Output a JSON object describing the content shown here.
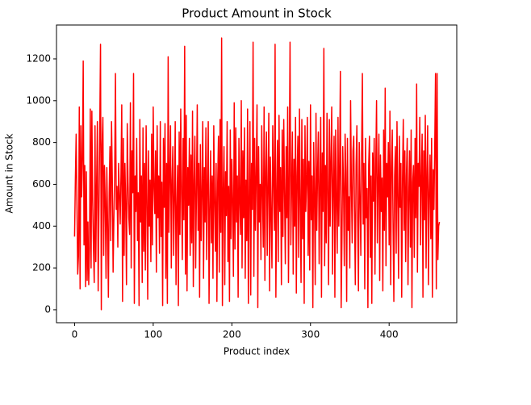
{
  "chart_data": {
    "type": "line",
    "title": "Product Amount in Stock",
    "x_label": "Product index",
    "y_label": "Amount in Stock",
    "xlim": [
      -23,
      486
    ],
    "ylim": [
      -62,
      1362
    ],
    "xticks": [
      0,
      100,
      200,
      300,
      400
    ],
    "yticks": [
      0,
      200,
      400,
      600,
      800,
      1000,
      1200
    ],
    "grid": false,
    "x": [
      0,
      1,
      2,
      3,
      4,
      5,
      6,
      7,
      8,
      9,
      10,
      11,
      12,
      13,
      14,
      15,
      16,
      17,
      18,
      19,
      20,
      21,
      22,
      23,
      24,
      25,
      26,
      27,
      28,
      29,
      30,
      31,
      32,
      33,
      34,
      35,
      36,
      37,
      38,
      39,
      40,
      41,
      42,
      43,
      44,
      45,
      46,
      47,
      48,
      49,
      50,
      51,
      52,
      53,
      54,
      55,
      56,
      57,
      58,
      59,
      60,
      61,
      62,
      63,
      64,
      65,
      66,
      67,
      68,
      69,
      70,
      71,
      72,
      73,
      74,
      75,
      76,
      77,
      78,
      79,
      80,
      81,
      82,
      83,
      84,
      85,
      86,
      87,
      88,
      89,
      90,
      91,
      92,
      93,
      94,
      95,
      96,
      97,
      98,
      99,
      100,
      101,
      102,
      103,
      104,
      105,
      106,
      107,
      108,
      109,
      110,
      111,
      112,
      113,
      114,
      115,
      116,
      117,
      118,
      119,
      120,
      121,
      122,
      123,
      124,
      125,
      126,
      127,
      128,
      129,
      130,
      131,
      132,
      133,
      134,
      135,
      136,
      137,
      138,
      139,
      140,
      141,
      142,
      143,
      144,
      145,
      146,
      147,
      148,
      149,
      150,
      151,
      152,
      153,
      154,
      155,
      156,
      157,
      158,
      159,
      160,
      161,
      162,
      163,
      164,
      165,
      166,
      167,
      168,
      169,
      170,
      171,
      172,
      173,
      174,
      175,
      176,
      177,
      178,
      179,
      180,
      181,
      182,
      183,
      184,
      185,
      186,
      187,
      188,
      189,
      190,
      191,
      192,
      193,
      194,
      195,
      196,
      197,
      198,
      199,
      200,
      201,
      202,
      203,
      204,
      205,
      206,
      207,
      208,
      209,
      210,
      211,
      212,
      213,
      214,
      215,
      216,
      217,
      218,
      219,
      220,
      221,
      222,
      223,
      224,
      225,
      226,
      227,
      228,
      229,
      230,
      231,
      232,
      233,
      234,
      235,
      236,
      237,
      238,
      239,
      240,
      241,
      242,
      243,
      244,
      245,
      246,
      247,
      248,
      249,
      250,
      251,
      252,
      253,
      254,
      255,
      256,
      257,
      258,
      259,
      260,
      261,
      262,
      263,
      264,
      265,
      266,
      267,
      268,
      269,
      270,
      271,
      272,
      273,
      274,
      275,
      276,
      277,
      278,
      279,
      280,
      281,
      282,
      283,
      284,
      285,
      286,
      287,
      288,
      289,
      290,
      291,
      292,
      293,
      294,
      295,
      296,
      297,
      298,
      299,
      300,
      301,
      302,
      303,
      304,
      305,
      306,
      307,
      308,
      309,
      310,
      311,
      312,
      313,
      314,
      315,
      316,
      317,
      318,
      319,
      320,
      321,
      322,
      323,
      324,
      325,
      326,
      327,
      328,
      329,
      330,
      331,
      332,
      333,
      334,
      335,
      336,
      337,
      338,
      339,
      340,
      341,
      342,
      343,
      344,
      345,
      346,
      347,
      348,
      349,
      350,
      351,
      352,
      353,
      354,
      355,
      356,
      357,
      358,
      359,
      360,
      361,
      362,
      363,
      364,
      365,
      366,
      367,
      368,
      369,
      370,
      371,
      372,
      373,
      374,
      375,
      376,
      377,
      378,
      379,
      380,
      381,
      382,
      383,
      384,
      385,
      386,
      387,
      388,
      389,
      390,
      391,
      392,
      393,
      394,
      395,
      396,
      397,
      398,
      399,
      400,
      401,
      402,
      403,
      404,
      405,
      406,
      407,
      408,
      409,
      410,
      411,
      412,
      413,
      414,
      415,
      416,
      417,
      418,
      419,
      420,
      421,
      422,
      423,
      424,
      425,
      426,
      427,
      428,
      429,
      430,
      431,
      432,
      433,
      434,
      435,
      436,
      437,
      438,
      439,
      440,
      441,
      442,
      443,
      444,
      445,
      446,
      447,
      448,
      449,
      450,
      451,
      452,
      453,
      454,
      455,
      456,
      457,
      458,
      459,
      460,
      461,
      462,
      463,
      464
    ],
    "series": [
      {
        "color": "#ff0000",
        "values": [
          350,
          620,
          840,
          500,
          170,
          260,
          970,
          100,
          880,
          540,
          720,
          1190,
          310,
          690,
          110,
          660,
          140,
          420,
          120,
          300,
          960,
          200,
          950,
          520,
          300,
          130,
          880,
          230,
          600,
          900,
          90,
          470,
          860,
          1270,
          0,
          790,
          920,
          260,
          690,
          520,
          150,
          680,
          420,
          60,
          560,
          780,
          330,
          900,
          620,
          180,
          440,
          650,
          1130,
          480,
          590,
          300,
          700,
          550,
          410,
          640,
          980,
          40,
          820,
          260,
          700,
          500,
          120,
          890,
          610,
          440,
          360,
          990,
          200,
          760,
          560,
          1130,
          30,
          640,
          470,
          820,
          330,
          560,
          20,
          910,
          420,
          640,
          130,
          870,
          280,
          700,
          190,
          880,
          520,
          50,
          760,
          400,
          620,
          230,
          840,
          310,
          970,
          580,
          460,
          760,
          180,
          880,
          440,
          640,
          270,
          900,
          350,
          610,
          20,
          820,
          490,
          890,
          150,
          700,
          30,
          1210,
          370,
          650,
          880,
          200,
          620,
          780,
          260,
          540,
          900,
          120,
          480,
          690,
          20,
          850,
          360,
          960,
          560,
          240,
          820,
          430,
          1260,
          170,
          930,
          90,
          680,
          500,
          820,
          260,
          740,
          320,
          950,
          110,
          620,
          830,
          200,
          560,
          980,
          380,
          700,
          60,
          790,
          330,
          560,
          900,
          150,
          680,
          420,
          870,
          240,
          610,
          900,
          30,
          470,
          760,
          320,
          640,
          150,
          880,
          520,
          280,
          700,
          40,
          610,
          830,
          180,
          910,
          370,
          1300,
          20,
          560,
          780,
          120,
          660,
          450,
          900,
          230,
          590,
          40,
          860,
          340,
          720,
          510,
          160,
          990,
          290,
          870,
          420,
          640,
          60,
          820,
          530,
          360,
          1000,
          200,
          760,
          440,
          870,
          150,
          620,
          330,
          960,
          30,
          540,
          900,
          70,
          700,
          480,
          1280,
          160,
          820,
          380,
          650,
          980,
          10,
          780,
          420,
          600,
          240,
          880,
          550,
          300,
          970,
          140,
          660,
          850,
          260,
          590,
          940,
          90,
          730,
          450,
          200,
          880,
          620,
          380,
          1270,
          60,
          540,
          810,
          230,
          930,
          470,
          680,
          120,
          860,
          350,
          910,
          560,
          220,
          780,
          440,
          970,
          130,
          660,
          1280,
          310,
          590,
          850,
          170,
          720,
          400,
          920,
          80,
          640,
          830,
          250,
          960,
          510,
          130,
          910,
          340,
          720,
          30,
          880,
          470,
          610,
          920,
          260,
          710,
          190,
          980,
          430,
          640,
          10,
          800,
          560,
          120,
          940,
          380,
          660,
          850,
          220,
          590,
          920,
          60,
          750,
          470,
          1250,
          210,
          690,
          320,
          940,
          560,
          120,
          910,
          400,
          730,
          970,
          170,
          620,
          830,
          60,
          860,
          520,
          270,
          920,
          400,
          690,
          1140,
          10,
          330,
          780,
          590,
          210,
          840,
          660,
          40,
          820,
          380,
          540,
          200,
          1000,
          600,
          320,
          760,
          830,
          470,
          120,
          690,
          880,
          420,
          90,
          800,
          550,
          260,
          750,
          1130,
          410,
          700,
          100,
          820,
          440,
          580,
          10,
          690,
          830,
          250,
          640,
          30,
          750,
          520,
          820,
          170,
          680,
          1000,
          320,
          610,
          840,
          140,
          740,
          470,
          630,
          90,
          860,
          380,
          1060,
          210,
          700,
          540,
          800,
          310,
          950,
          120,
          680,
          860,
          420,
          40,
          640,
          780,
          270,
          900,
          540,
          150,
          830,
          490,
          700,
          60,
          620,
          910,
          380,
          760,
          230,
          640,
          820,
          120,
          540,
          760,
          300,
          860,
          10,
          610,
          690,
          250,
          820,
          440,
          1080,
          180,
          700,
          590,
          920,
          310,
          640,
          840,
          60,
          760,
          430,
          930,
          200,
          660,
          880,
          120,
          560,
          740,
          340,
          820,
          60,
          670,
          480,
          780,
          1130,
          100,
          1130,
          240,
          400,
          420
        ]
      }
    ]
  }
}
